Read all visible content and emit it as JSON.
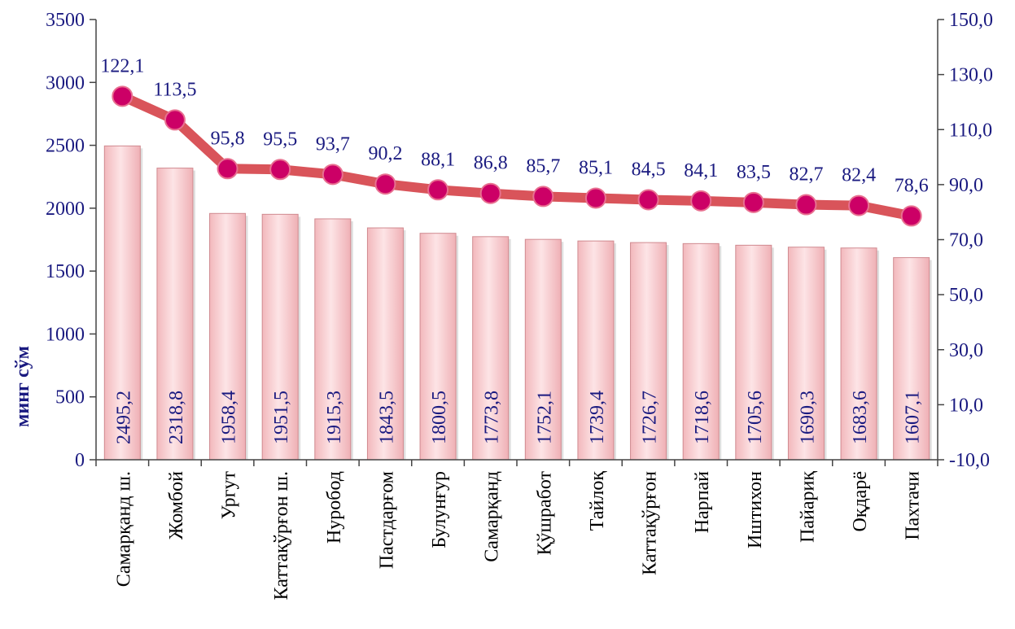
{
  "chart_data": {
    "type": "bar",
    "categories": [
      "Самарқанд ш.",
      "Жомбой",
      "Ургут",
      "Каттақўрғон ш.",
      "Нуробод",
      "Пастдарғом",
      "Булунғур",
      "Самарқанд",
      "Қўшработ",
      "Тайлоқ",
      "Каттақўрғон",
      "Нарпай",
      "Иштихон",
      "Пайариқ",
      "Оқдарё",
      "Пахтачи"
    ],
    "series": [
      {
        "kind": "bar",
        "axis": "left",
        "values": [
          2495.2,
          2318.8,
          1958.4,
          1951.5,
          1915.3,
          1843.5,
          1800.5,
          1773.8,
          1752.1,
          1739.4,
          1726.7,
          1718.6,
          1705.6,
          1690.3,
          1683.6,
          1607.1
        ],
        "labels": [
          "2495,2",
          "2318,8",
          "1958,4",
          "1951,5",
          "1915,3",
          "1843,5",
          "1800,5",
          "1773,8",
          "1752,1",
          "1739,4",
          "1726,7",
          "1718,6",
          "1705,6",
          "1690,3",
          "1683,6",
          "1607,1"
        ]
      },
      {
        "kind": "line",
        "axis": "right",
        "values": [
          122.1,
          113.5,
          95.8,
          95.5,
          93.7,
          90.2,
          88.1,
          86.8,
          85.7,
          85.1,
          84.5,
          84.1,
          83.5,
          82.7,
          82.4,
          78.6
        ],
        "labels": [
          "122,1",
          "113,5",
          "95,8",
          "95,5",
          "93,7",
          "90,2",
          "88,1",
          "86,8",
          "85,7",
          "85,1",
          "84,5",
          "84,1",
          "83,5",
          "82,7",
          "82,4",
          "78,6"
        ]
      }
    ],
    "ylabel": "минг сўм",
    "ylim": [
      0,
      3500
    ],
    "yticks": [
      "0",
      "500",
      "1000",
      "1500",
      "2000",
      "2500",
      "3000",
      "3500"
    ],
    "y2lim": [
      -10,
      150
    ],
    "y2ticks": [
      "-10,0",
      "10,0",
      "30,0",
      "50,0",
      "70,0",
      "90,0",
      "110,0",
      "130,0",
      "150,0"
    ],
    "grid": false,
    "legend": "none",
    "colors": {
      "bar_fill": "#f2b8bc",
      "bar_highlight": "#fde4e6",
      "bar_stroke": "#d08a90",
      "line": "#d9545a",
      "marker": "#cc0066",
      "text": "#1a1a80"
    }
  }
}
